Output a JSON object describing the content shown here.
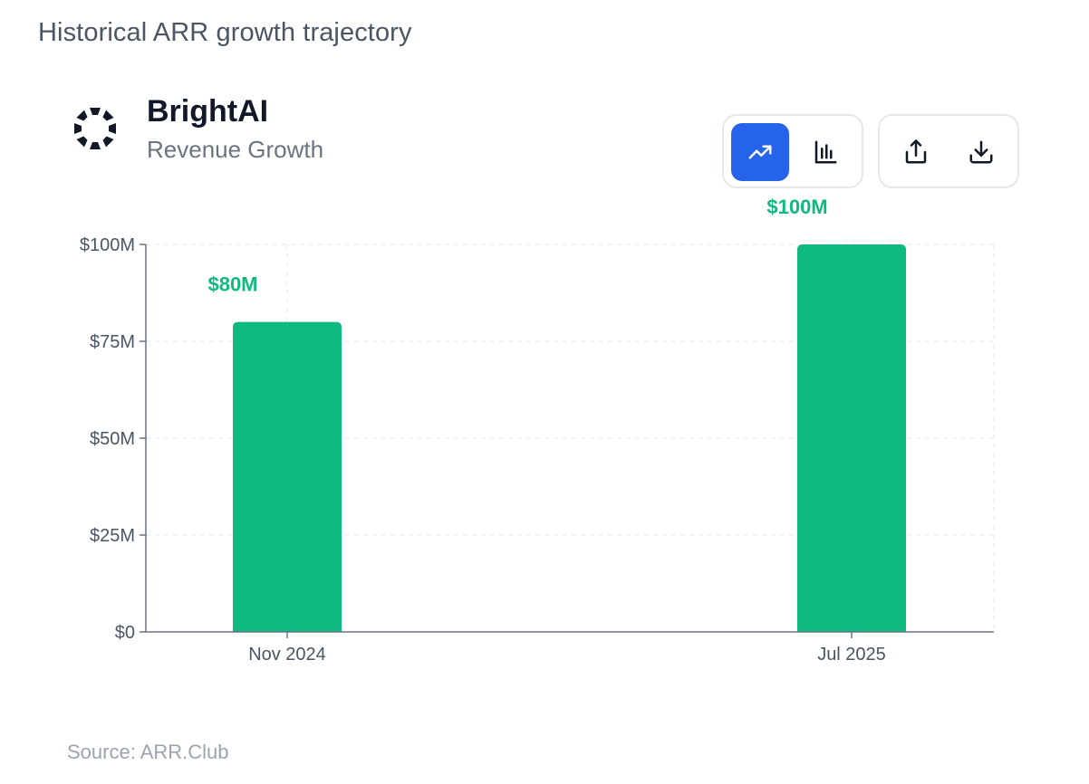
{
  "page": {
    "heading": "Historical ARR growth trajectory"
  },
  "header": {
    "company": "BrightAI",
    "subtitle": "Revenue Growth"
  },
  "toolbar": {
    "line_icon": "trending-up-icon",
    "bar_icon": "bar-chart-icon",
    "share_icon": "share-icon",
    "download_icon": "download-icon",
    "active_view": "line",
    "accent_color": "#2563eb"
  },
  "chart_data": {
    "type": "bar",
    "categories": [
      "Nov 2024",
      "Jul 2025"
    ],
    "values": [
      80,
      100
    ],
    "value_labels": [
      "$80M",
      "$100M"
    ],
    "ylim": [
      0,
      100
    ],
    "y_ticks": [
      0,
      25,
      50,
      75,
      100
    ],
    "y_tick_labels": [
      "$0",
      "$25M",
      "$50M",
      "$75M",
      "$100M"
    ],
    "grid": true,
    "bar_color": "#10b981",
    "label_color": "#10b981"
  },
  "footer": {
    "source": "Source: ARR.Club"
  }
}
